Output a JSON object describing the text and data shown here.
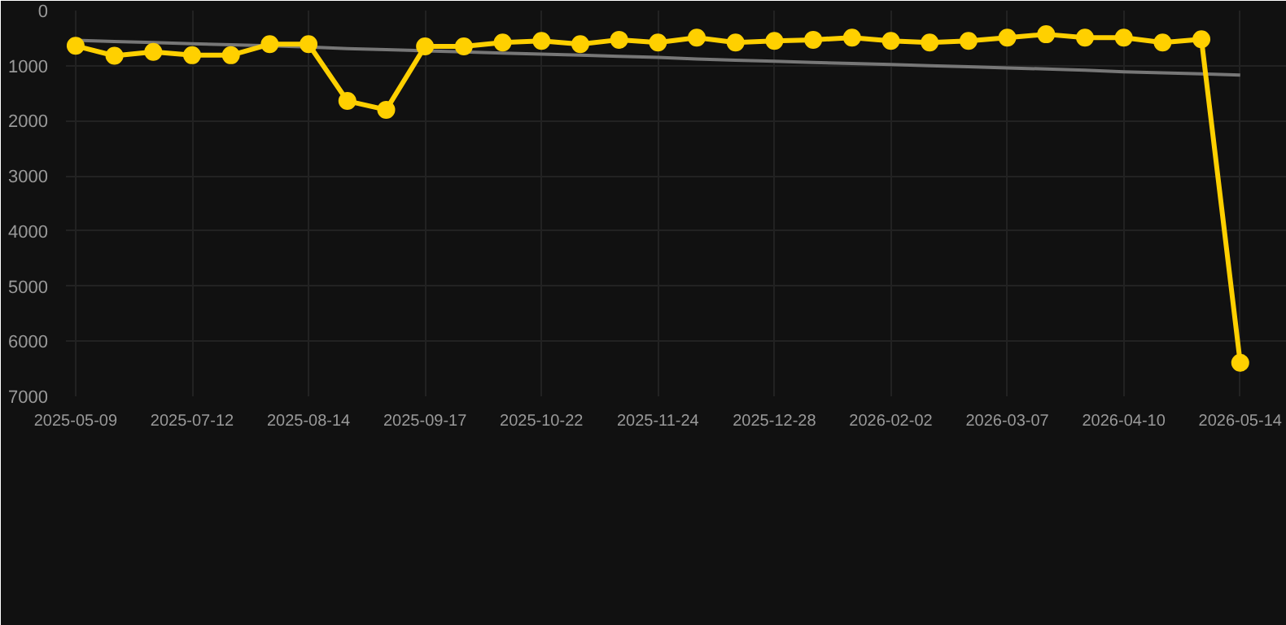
{
  "chart_data": {
    "type": "line",
    "categories": [
      "2025-05-09",
      null,
      null,
      "2025-07-12",
      null,
      null,
      "2025-08-14",
      null,
      null,
      "2025-09-17",
      null,
      null,
      "2025-10-22",
      null,
      null,
      "2025-11-24",
      null,
      null,
      "2025-12-28",
      null,
      null,
      "2026-02-02",
      null,
      null,
      "2026-03-07",
      null,
      null,
      "2026-04-10",
      null,
      null,
      "2026-05-14"
    ],
    "series": [
      {
        "color": "#ffd000",
        "marker": "circle",
        "values": [
          640,
          820,
          750,
          810,
          810,
          610,
          610,
          1640,
          1800,
          650,
          650,
          580,
          550,
          610,
          530,
          580,
          490,
          580,
          550,
          530,
          490,
          550,
          580,
          550,
          490,
          430,
          490,
          490,
          580,
          520,
          6390
        ]
      },
      {
        "type": "line",
        "color": "#777777",
        "marker": "none",
        "values": [
          540,
          560,
          580,
          600,
          620,
          640,
          660,
          690,
          710,
          730,
          750,
          770,
          790,
          810,
          830,
          850,
          880,
          900,
          920,
          940,
          960,
          980,
          1000,
          1020,
          1040,
          1060,
          1080,
          1110,
          1130,
          1150,
          1170
        ]
      }
    ],
    "ylim": [
      7000,
      0
    ],
    "yticks": [
      0,
      1000,
      2000,
      3000,
      4000,
      5000,
      6000,
      7000
    ],
    "grid": true,
    "line_style": "solid"
  }
}
